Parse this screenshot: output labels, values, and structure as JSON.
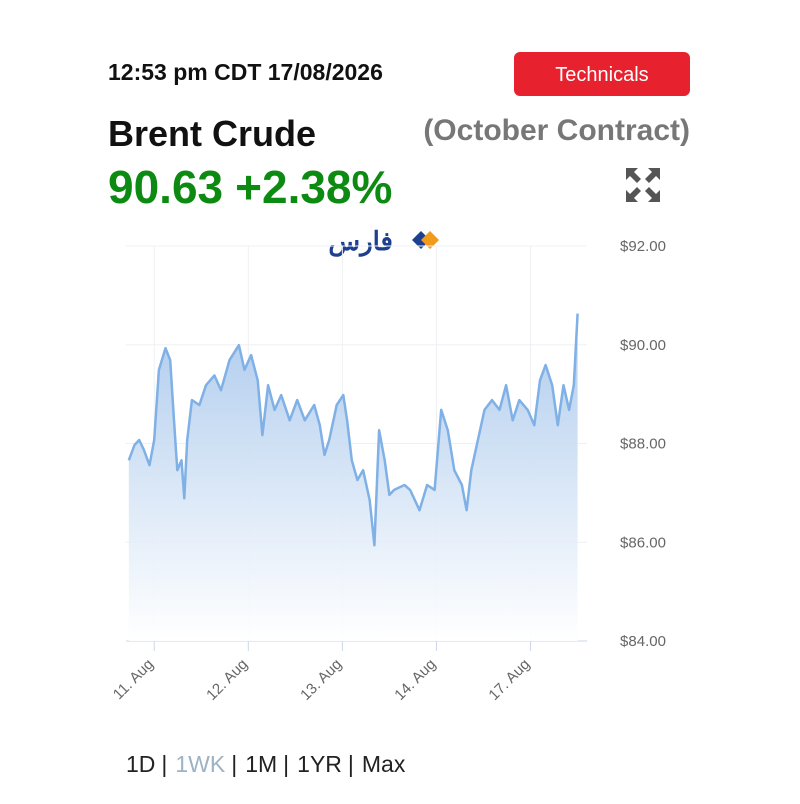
{
  "header": {
    "timestamp": "12:53 pm CDT 17/08/2026",
    "button": "Technicals",
    "name": "Brent Crude",
    "contract": "(October Contract)",
    "price": "90.63",
    "change": "+2.38%"
  },
  "logo": "فارس",
  "chart_data": {
    "type": "area",
    "x": [
      -0.27,
      -0.21,
      -0.16,
      -0.11,
      -0.05,
      0,
      0.05,
      0.12,
      0.17,
      0.21,
      0.245,
      0.29,
      0.32,
      0.35,
      0.4,
      0.48,
      0.55,
      0.64,
      0.71,
      0.8,
      0.9,
      0.96,
      1.03,
      1.1,
      1.15,
      1.21,
      1.28,
      1.35,
      1.44,
      1.52,
      1.6,
      1.7,
      1.76,
      1.81,
      1.86,
      1.94,
      2.01,
      2.05,
      2.1,
      2.16,
      2.22,
      2.29,
      2.34,
      2.39,
      2.45,
      2.5,
      2.55,
      2.66,
      2.72,
      2.82,
      2.9,
      2.98,
      3.05,
      3.12,
      3.19,
      3.27,
      3.32,
      3.37,
      3.44,
      3.51,
      3.59,
      3.67,
      3.74,
      3.81,
      3.88,
      3.97,
      4.04,
      4.1,
      4.16,
      4.23,
      4.29,
      4.35,
      4.41,
      4.46,
      4.5
    ],
    "values": [
      87.66,
      87.97,
      88.07,
      87.87,
      87.56,
      88.07,
      89.49,
      89.93,
      89.69,
      88.47,
      87.46,
      87.66,
      86.89,
      88.07,
      88.88,
      88.78,
      89.18,
      89.38,
      89.08,
      89.69,
      89.99,
      89.49,
      89.79,
      89.28,
      88.17,
      89.18,
      88.68,
      88.98,
      88.47,
      88.88,
      88.47,
      88.78,
      88.37,
      87.77,
      88.07,
      88.78,
      88.98,
      88.47,
      87.66,
      87.26,
      87.46,
      86.85,
      85.94,
      88.27,
      87.66,
      86.96,
      87.06,
      87.16,
      87.06,
      86.65,
      87.16,
      87.06,
      88.68,
      88.27,
      87.46,
      87.16,
      86.65,
      87.46,
      88.07,
      88.68,
      88.88,
      88.68,
      89.18,
      88.47,
      88.88,
      88.68,
      88.37,
      89.28,
      89.59,
      89.18,
      88.37,
      89.18,
      88.68,
      89.18,
      90.63
    ],
    "color": "#7fb0e6",
    "xlim": [
      -0.3,
      4.6
    ],
    "xticks": [
      {
        "value": 0,
        "label": "11. Aug"
      },
      {
        "value": 1,
        "label": "12. Aug"
      },
      {
        "value": 2,
        "label": "13. Aug"
      },
      {
        "value": 3,
        "label": "14. Aug"
      },
      {
        "value": 4,
        "label": "17. Aug"
      }
    ],
    "ylim": [
      84,
      92
    ],
    "yticks": [
      {
        "value": 84,
        "label": "$84.00"
      },
      {
        "value": 86,
        "label": "$86.00"
      },
      {
        "value": 88,
        "label": "$88.00"
      },
      {
        "value": 90,
        "label": "$90.00"
      },
      {
        "value": 92,
        "label": "$92.00"
      }
    ],
    "grid": true
  },
  "ranges": [
    "1D",
    "1WK",
    "1M",
    "1YR",
    "Max"
  ],
  "separator": "|"
}
